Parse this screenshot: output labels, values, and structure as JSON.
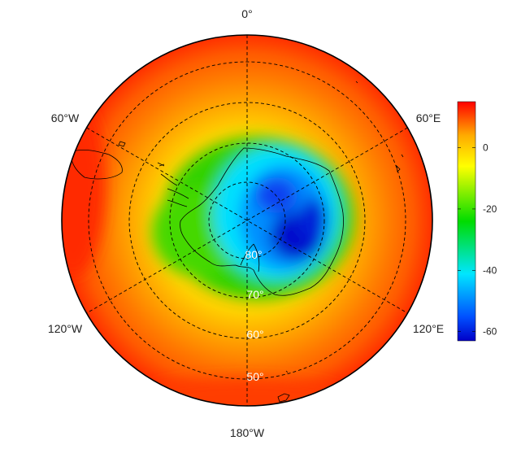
{
  "map": {
    "projection": "south-polar-stereographic",
    "colormap": [
      "#0000c8",
      "#0050ff",
      "#00e6ff",
      "#00dc00",
      "#ffff00",
      "#ffaa00",
      "#ff4a00",
      "#ff0000"
    ],
    "longitude_labels": {
      "top": "0°",
      "upper_left": "60°W",
      "upper_right": "60°E",
      "lower_left": "120°W",
      "lower_right": "120°E",
      "bottom": "180°W"
    },
    "latitude_labels": [
      "80°",
      "70°",
      "60°",
      "50°"
    ],
    "gridlines": "dashed"
  },
  "colorbar": {
    "min": -63,
    "max": 15,
    "ticks": [
      "0",
      "-20",
      "-40",
      "-60"
    ],
    "tick_values": [
      0,
      -20,
      -40,
      -60
    ]
  }
}
